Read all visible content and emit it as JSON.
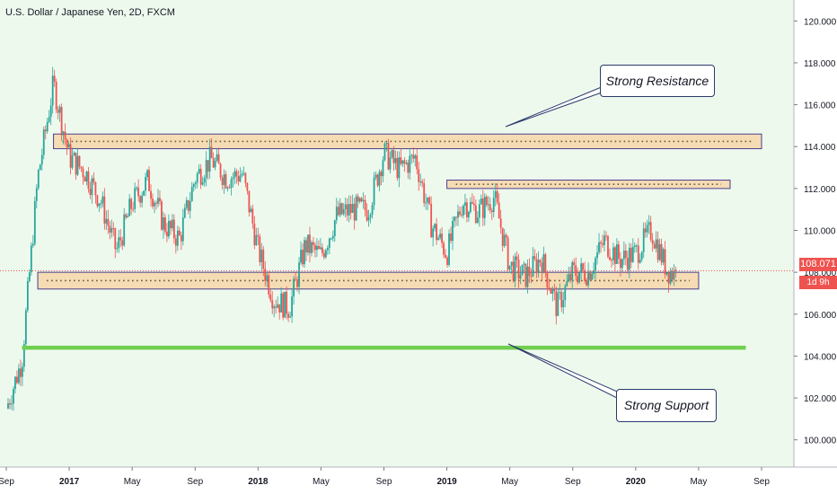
{
  "title": "U.S. Dollar / Japanese Yen, 2D, FXCM",
  "colors": {
    "up": "#26a69a",
    "down": "#ef5350",
    "background": "#eef9ee",
    "zone_fill": "#f5dcb4",
    "zone_border": "#4b3e8c",
    "support_line": "#6fcf4f",
    "last_price": "#ef5350"
  },
  "last_price_label": "108.071",
  "countdown_label": "1d 9h",
  "annotations": {
    "resistance": "Strong Resistance",
    "support": "Strong Support"
  },
  "chart_data": {
    "type": "candlestick",
    "title": "U.S. Dollar / Japanese Yen, 2D, FXCM",
    "y_axis": {
      "ticks": [
        100,
        102,
        104,
        106,
        108,
        110,
        112,
        114,
        116,
        118,
        120
      ],
      "tick_labels": [
        "100.000",
        "102.000",
        "104.000",
        "106.000",
        "108.000",
        "110.000",
        "112.000",
        "114.000",
        "116.000",
        "118.000",
        "120.000"
      ],
      "range": [
        98.7,
        121.0
      ],
      "position": "right"
    },
    "x_axis": {
      "tick_labels": [
        "Sep",
        "2017",
        "May",
        "Sep",
        "2018",
        "May",
        "Sep",
        "2019",
        "May",
        "Sep",
        "2020",
        "May",
        "Sep"
      ],
      "tick_dates": [
        "2016-09",
        "2017-01",
        "2017-05",
        "2017-09",
        "2018-01",
        "2018-05",
        "2018-09",
        "2019-01",
        "2019-05",
        "2019-09",
        "2020-01",
        "2020-05",
        "2020-09"
      ]
    },
    "series": [
      {
        "type": "close",
        "dates": [
          "2016-09",
          "2016-10",
          "2016-11",
          "2016-12",
          "2017-01",
          "2017-02",
          "2017-03",
          "2017-04",
          "2017-05",
          "2017-06",
          "2017-07",
          "2017-08",
          "2017-09",
          "2017-10",
          "2017-11",
          "2017-12",
          "2018-01",
          "2018-02",
          "2018-03",
          "2018-04",
          "2018-05",
          "2018-06",
          "2018-07",
          "2018-08",
          "2018-09",
          "2018-10",
          "2018-11",
          "2018-12",
          "2019-01",
          "2019-02",
          "2019-03",
          "2019-04",
          "2019-05",
          "2019-06",
          "2019-07",
          "2019-08",
          "2019-09",
          "2019-10",
          "2019-11",
          "2019-12",
          "2020-01",
          "2020-02",
          "2020-03"
        ],
        "values": [
          101.5,
          103.8,
          112.5,
          117.0,
          113.5,
          112.8,
          111.4,
          109.0,
          111.3,
          112.4,
          110.3,
          109.6,
          112.5,
          113.4,
          112.5,
          112.7,
          109.1,
          106.7,
          106.3,
          109.3,
          108.8,
          110.7,
          111.0,
          111.0,
          113.7,
          112.9,
          113.5,
          110.3,
          108.9,
          111.4,
          110.9,
          111.6,
          108.3,
          107.8,
          108.7,
          106.3,
          108.0,
          108.0,
          109.5,
          108.6,
          108.9,
          110.0,
          108.1
        ]
      }
    ],
    "zones": [
      {
        "name": "resistance-zone-upper",
        "y_low": 113.9,
        "y_high": 114.6,
        "x_start": "2016-12",
        "x_end": "2020-09"
      },
      {
        "name": "resistance-zone-lower",
        "y_low": 112.0,
        "y_high": 112.4,
        "x_start": "2019-01",
        "x_end": "2020-07"
      },
      {
        "name": "support-zone",
        "y_low": 107.2,
        "y_high": 108.0,
        "x_start": "2016-11",
        "x_end": "2020-05"
      }
    ],
    "support_line": {
      "y": 104.4,
      "x_start": "2016-10",
      "x_end": "2020-08"
    },
    "last_price": 108.071,
    "grid": false
  }
}
